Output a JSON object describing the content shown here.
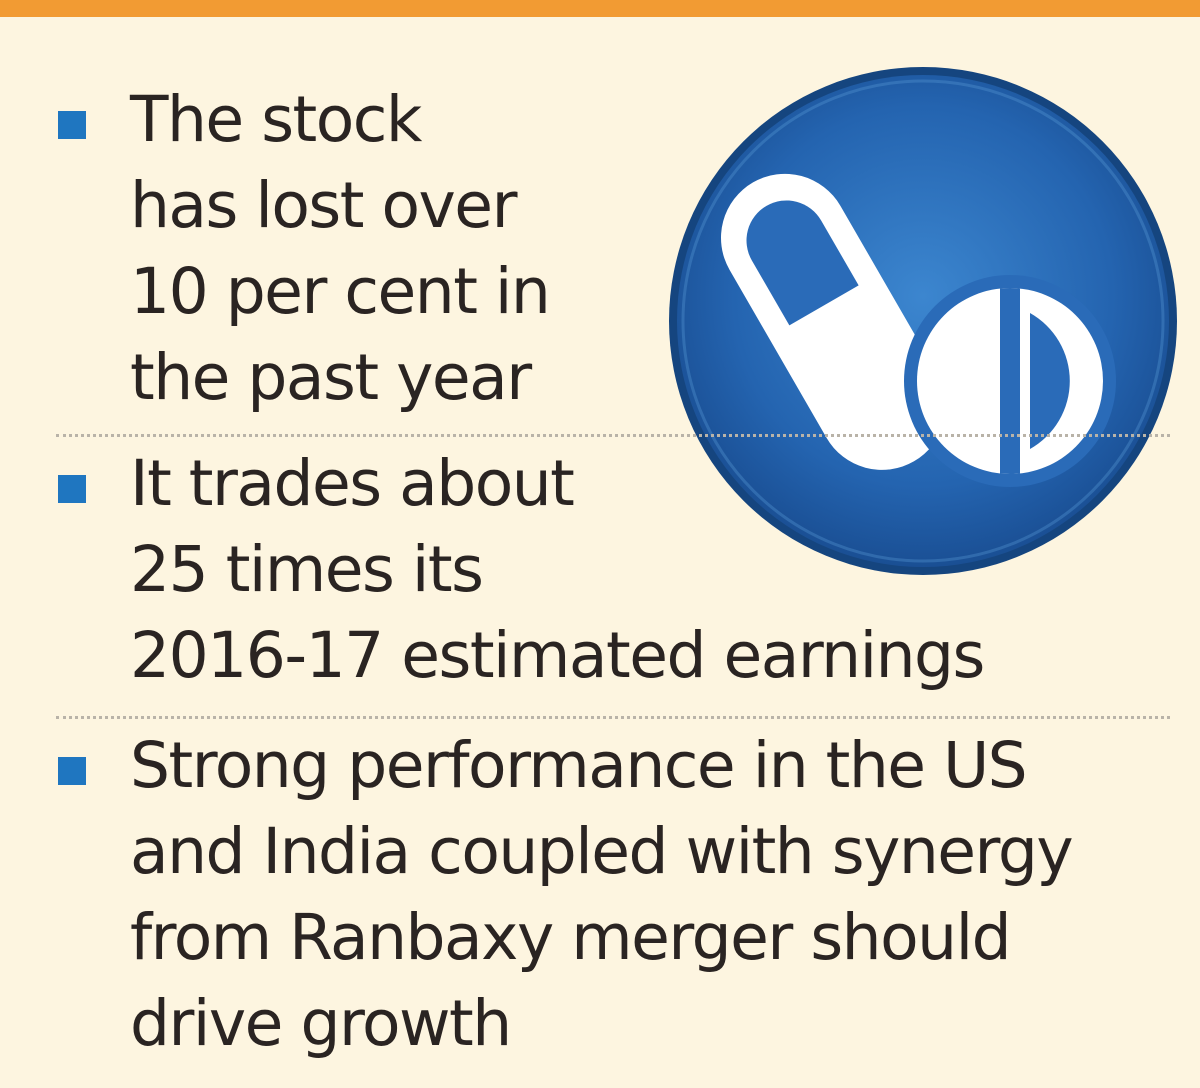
{
  "colors": {
    "background": "#fdf5e0",
    "top_bar": "#f29b33",
    "bullet": "#1f76c0",
    "text": "#2a2422",
    "icon_circle": "#2a6bb8",
    "icon_foreground": "#ffffff"
  },
  "icon": {
    "name": "medicine-pill-tablet-icon"
  },
  "points": [
    {
      "lines": [
        "The stock",
        "has lost over",
        "10 per cent in",
        "the past year"
      ]
    },
    {
      "lines": [
        "It trades about",
        "25 times its",
        "2016-17 estimated earnings"
      ]
    },
    {
      "lines": [
        "Strong performance in the US",
        "and India coupled with synergy",
        "from Ranbaxy merger should",
        "drive growth"
      ]
    }
  ]
}
